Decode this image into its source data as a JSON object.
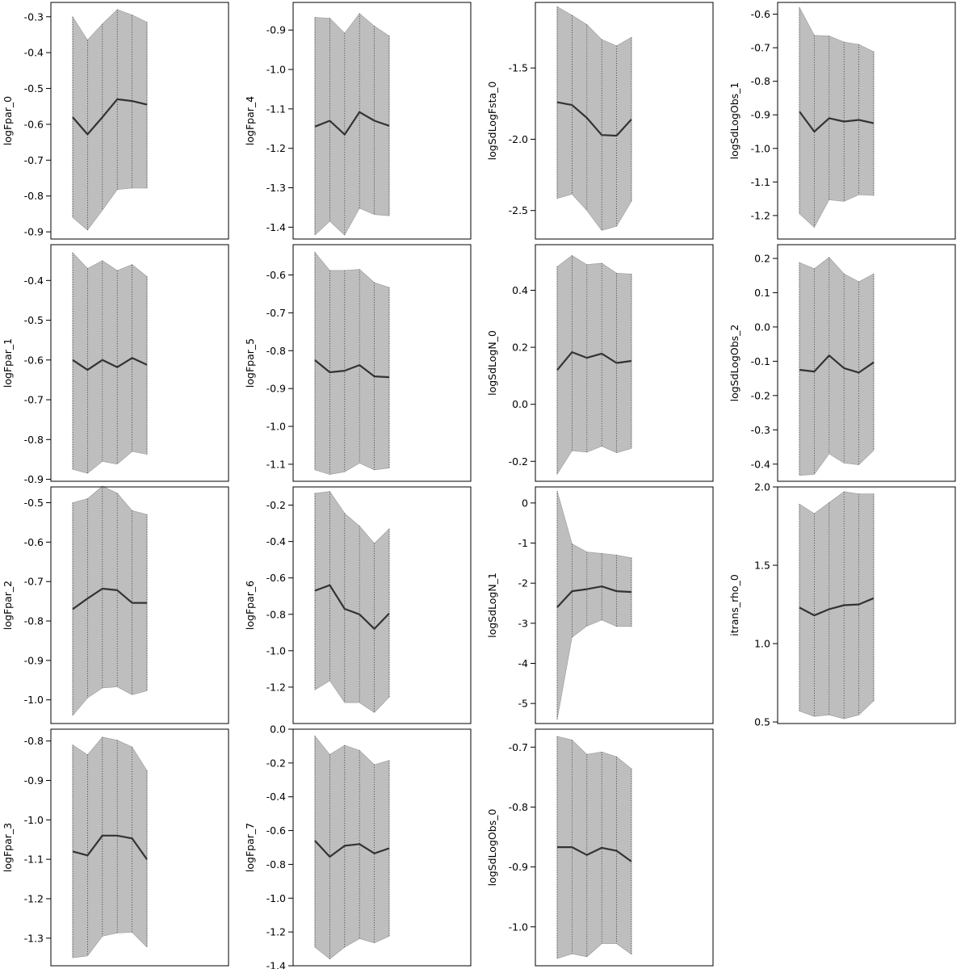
{
  "chart_data": [
    {
      "type": "area",
      "ylabel": "logFpar_0",
      "ylim": [
        -0.92,
        -0.26
      ],
      "yticks": [
        -0.9,
        -0.8,
        -0.7,
        -0.6,
        -0.5,
        -0.4,
        -0.3
      ],
      "tick_labels": [
        "-0.9",
        "-0.8",
        "-0.7",
        "-0.6",
        "-0.5",
        "-0.4",
        "-0.3"
      ],
      "x": [
        1,
        2,
        3,
        4,
        5,
        6
      ],
      "series": [
        {
          "values": [
            -0.58,
            -0.628,
            -0.58,
            -0.53,
            -0.535,
            -0.545
          ]
        }
      ],
      "upper": [
        -0.3,
        -0.365,
        -0.32,
        -0.28,
        -0.295,
        -0.315
      ],
      "lower": [
        -0.86,
        -0.895,
        -0.84,
        -0.782,
        -0.778,
        -0.778
      ]
    },
    {
      "type": "area",
      "ylabel": "logFpar_1",
      "ylim": [
        -0.905,
        -0.31
      ],
      "yticks": [
        -0.9,
        -0.8,
        -0.7,
        -0.6,
        -0.5,
        -0.4
      ],
      "tick_labels": [
        "-0.9",
        "-0.8",
        "-0.7",
        "-0.6",
        "-0.5",
        "-0.4"
      ],
      "x": [
        1,
        2,
        3,
        4,
        5,
        6
      ],
      "series": [
        {
          "values": [
            -0.6,
            -0.625,
            -0.6,
            -0.618,
            -0.595,
            -0.612
          ]
        }
      ],
      "upper": [
        -0.33,
        -0.37,
        -0.35,
        -0.375,
        -0.36,
        -0.39
      ],
      "lower": [
        -0.875,
        -0.885,
        -0.855,
        -0.862,
        -0.83,
        -0.837
      ]
    },
    {
      "type": "area",
      "ylabel": "logFpar_2",
      "ylim": [
        -1.06,
        -0.46
      ],
      "yticks": [
        -1.0,
        -0.9,
        -0.8,
        -0.7,
        -0.6,
        -0.5
      ],
      "tick_labels": [
        "-1.0",
        "-0.9",
        "-0.8",
        "-0.7",
        "-0.6",
        "-0.5"
      ],
      "x": [
        1,
        2,
        3,
        4,
        5,
        6
      ],
      "series": [
        {
          "values": [
            -0.77,
            -0.743,
            -0.718,
            -0.722,
            -0.754,
            -0.754
          ]
        }
      ],
      "upper": [
        -0.5,
        -0.49,
        -0.458,
        -0.476,
        -0.52,
        -0.53
      ],
      "lower": [
        -1.04,
        -0.995,
        -0.97,
        -0.967,
        -0.987,
        -0.977
      ]
    },
    {
      "type": "area",
      "ylabel": "logFpar_3",
      "ylim": [
        -1.37,
        -0.77
      ],
      "yticks": [
        -1.3,
        -1.2,
        -1.1,
        -1.0,
        -0.9,
        -0.8
      ],
      "tick_labels": [
        "-1.3",
        "-1.2",
        "-1.1",
        "-1.0",
        "-0.9",
        "-0.8"
      ],
      "x": [
        1,
        2,
        3,
        4,
        5,
        6
      ],
      "series": [
        {
          "values": [
            -1.08,
            -1.09,
            -1.04,
            -1.04,
            -1.047,
            -1.1
          ]
        }
      ],
      "upper": [
        -0.81,
        -0.835,
        -0.79,
        -0.798,
        -0.815,
        -0.875
      ],
      "lower": [
        -1.35,
        -1.345,
        -1.295,
        -1.287,
        -1.285,
        -1.323
      ]
    },
    {
      "type": "area",
      "ylabel": "logFpar_4",
      "ylim": [
        -1.43,
        -0.83
      ],
      "yticks": [
        -1.4,
        -1.3,
        -1.2,
        -1.1,
        -1.0,
        -0.9
      ],
      "tick_labels": [
        "-1.4",
        "-1.3",
        "-1.2",
        "-1.1",
        "-1.0",
        "-0.9"
      ],
      "x": [
        1,
        2,
        3,
        4,
        5,
        6
      ],
      "series": [
        {
          "values": [
            -1.145,
            -1.13,
            -1.165,
            -1.108,
            -1.13,
            -1.143
          ]
        }
      ],
      "upper": [
        -0.868,
        -0.87,
        -0.908,
        -0.858,
        -0.89,
        -0.915
      ],
      "lower": [
        -1.42,
        -1.385,
        -1.42,
        -1.352,
        -1.368,
        -1.371
      ]
    },
    {
      "type": "area",
      "ylabel": "logFpar_5",
      "ylim": [
        -1.145,
        -0.52
      ],
      "yticks": [
        -1.1,
        -1.0,
        -0.9,
        -0.8,
        -0.7,
        -0.6
      ],
      "tick_labels": [
        "-1.1",
        "-1.0",
        "-0.9",
        "-0.8",
        "-0.7",
        "-0.6"
      ],
      "x": [
        1,
        2,
        3,
        4,
        5,
        6
      ],
      "series": [
        {
          "values": [
            -0.825,
            -0.857,
            -0.853,
            -0.838,
            -0.868,
            -0.87
          ]
        }
      ],
      "upper": [
        -0.54,
        -0.588,
        -0.588,
        -0.585,
        -0.62,
        -0.633
      ],
      "lower": [
        -1.115,
        -1.127,
        -1.12,
        -1.097,
        -1.115,
        -1.11
      ]
    },
    {
      "type": "area",
      "ylabel": "logFpar_6",
      "ylim": [
        -1.4,
        -0.1
      ],
      "yticks": [
        -1.2,
        -1.0,
        -0.8,
        -0.6,
        -0.4,
        -0.2
      ],
      "tick_labels": [
        "-1.2",
        "-1.0",
        "-0.8",
        "-0.6",
        "-0.4",
        "-0.2"
      ],
      "x": [
        1,
        2,
        3,
        4,
        5,
        6
      ],
      "series": [
        {
          "values": [
            -0.67,
            -0.64,
            -0.77,
            -0.8,
            -0.88,
            -0.795
          ]
        }
      ],
      "upper": [
        -0.135,
        -0.125,
        -0.245,
        -0.315,
        -0.41,
        -0.33
      ],
      "lower": [
        -1.215,
        -1.165,
        -1.285,
        -1.285,
        -1.34,
        -1.255
      ]
    },
    {
      "type": "area",
      "ylabel": "logFpar_7",
      "ylim": [
        -1.4,
        0.0
      ],
      "yticks": [
        -1.4,
        -1.2,
        -1.0,
        -0.8,
        -0.6,
        -0.4,
        -0.2,
        0.0
      ],
      "tick_labels": [
        "-1.4",
        "-1.2",
        "-1.0",
        "-0.8",
        "-0.6",
        "-0.4",
        "-0.2",
        "0.0"
      ],
      "x": [
        1,
        2,
        3,
        4,
        5,
        6
      ],
      "series": [
        {
          "values": [
            -0.66,
            -0.755,
            -0.69,
            -0.68,
            -0.735,
            -0.705
          ]
        }
      ],
      "upper": [
        -0.04,
        -0.15,
        -0.095,
        -0.125,
        -0.21,
        -0.185
      ],
      "lower": [
        -1.29,
        -1.36,
        -1.29,
        -1.24,
        -1.265,
        -1.225
      ]
    },
    {
      "type": "area",
      "ylabel": "logSdLogFsta_0",
      "ylim": [
        -2.7,
        -1.04
      ],
      "yticks": [
        -2.5,
        -2.0,
        -1.5
      ],
      "tick_labels": [
        "-2.5",
        "-2.0",
        "-1.5"
      ],
      "x": [
        1,
        2,
        3,
        4,
        5,
        6
      ],
      "series": [
        {
          "values": [
            -1.74,
            -1.76,
            -1.85,
            -1.97,
            -1.975,
            -1.86
          ]
        }
      ],
      "upper": [
        -1.07,
        -1.13,
        -1.195,
        -1.3,
        -1.345,
        -1.285
      ],
      "lower": [
        -2.415,
        -2.385,
        -2.5,
        -2.64,
        -2.61,
        -2.435
      ]
    },
    {
      "type": "area",
      "ylabel": "logSdLogN_0",
      "ylim": [
        -0.27,
        0.56
      ],
      "yticks": [
        -0.2,
        0.0,
        0.2,
        0.4
      ],
      "tick_labels": [
        "-0.2",
        "0.0",
        "0.2",
        "0.4"
      ],
      "x": [
        1,
        2,
        3,
        4,
        5,
        6
      ],
      "series": [
        {
          "values": [
            0.12,
            0.183,
            0.163,
            0.178,
            0.145,
            0.152
          ]
        }
      ],
      "upper": [
        0.483,
        0.522,
        0.49,
        0.495,
        0.46,
        0.457
      ],
      "lower": [
        -0.245,
        -0.163,
        -0.168,
        -0.147,
        -0.17,
        -0.155
      ]
    },
    {
      "type": "area",
      "ylabel": "logSdLogN_1",
      "ylim": [
        -5.5,
        0.4
      ],
      "yticks": [
        -5,
        -4,
        -3,
        -2,
        -1,
        0
      ],
      "tick_labels": [
        "-5",
        "-4",
        "-3",
        "-2",
        "-1",
        "0"
      ],
      "x": [
        1,
        2,
        3,
        4,
        5,
        6
      ],
      "series": [
        {
          "values": [
            -2.6,
            -2.2,
            -2.15,
            -2.08,
            -2.2,
            -2.22
          ]
        }
      ],
      "upper": [
        0.3,
        -1.02,
        -1.22,
        -1.26,
        -1.3,
        -1.37
      ],
      "lower": [
        -5.4,
        -3.35,
        -3.07,
        -2.92,
        -3.08,
        -3.08
      ]
    },
    {
      "type": "area",
      "ylabel": "logSdLogObs_0",
      "ylim": [
        -1.065,
        -0.67
      ],
      "yticks": [
        -1.0,
        -0.9,
        -0.8,
        -0.7
      ],
      "tick_labels": [
        "-1.0",
        "-0.9",
        "-0.8",
        "-0.7"
      ],
      "x": [
        1,
        2,
        3,
        4,
        5,
        6
      ],
      "series": [
        {
          "values": [
            -0.867,
            -0.867,
            -0.88,
            -0.868,
            -0.873,
            -0.891
          ]
        }
      ],
      "upper": [
        -0.682,
        -0.688,
        -0.712,
        -0.708,
        -0.716,
        -0.736
      ],
      "lower": [
        -1.053,
        -1.045,
        -1.05,
        -1.028,
        -1.028,
        -1.046
      ]
    },
    {
      "type": "area",
      "ylabel": "logSdLogObs_1",
      "ylim": [
        -1.27,
        -0.565
      ],
      "yticks": [
        -1.2,
        -1.1,
        -1.0,
        -0.9,
        -0.8,
        -0.7,
        -0.6
      ],
      "tick_labels": [
        "-1.2",
        "-1.1",
        "-1.0",
        "-0.9",
        "-0.8",
        "-0.7",
        "-0.6"
      ],
      "x": [
        1,
        2,
        3,
        4,
        5,
        6
      ],
      "series": [
        {
          "values": [
            -0.89,
            -0.95,
            -0.91,
            -0.92,
            -0.915,
            -0.925
          ]
        }
      ],
      "upper": [
        -0.58,
        -0.663,
        -0.665,
        -0.683,
        -0.69,
        -0.712
      ],
      "lower": [
        -1.195,
        -1.235,
        -1.153,
        -1.158,
        -1.138,
        -1.14
      ]
    },
    {
      "type": "area",
      "ylabel": "logSdLogObs_2",
      "ylim": [
        -0.45,
        0.24
      ],
      "yticks": [
        -0.4,
        -0.3,
        -0.2,
        -0.1,
        0.0,
        0.1,
        0.2
      ],
      "tick_labels": [
        "-0.4",
        "-0.3",
        "-0.2",
        "-0.1",
        "0.0",
        "0.1",
        "0.2"
      ],
      "x": [
        1,
        2,
        3,
        4,
        5,
        6
      ],
      "series": [
        {
          "values": [
            -0.125,
            -0.13,
            -0.083,
            -0.12,
            -0.133,
            -0.103
          ]
        }
      ],
      "upper": [
        0.188,
        0.17,
        0.203,
        0.155,
        0.132,
        0.155
      ],
      "lower": [
        -0.433,
        -0.43,
        -0.37,
        -0.397,
        -0.402,
        -0.36
      ]
    },
    {
      "type": "area",
      "ylabel": "itrans_rho_0",
      "ylim": [
        0.49,
        2.0
      ],
      "yticks": [
        0.5,
        1.0,
        1.5,
        2.0
      ],
      "tick_labels": [
        "0.5",
        "1.0",
        "1.5",
        "2.0"
      ],
      "x": [
        1,
        2,
        3,
        4,
        5,
        6
      ],
      "series": [
        {
          "values": [
            1.23,
            1.18,
            1.22,
            1.245,
            1.25,
            1.29
          ]
        }
      ],
      "upper": [
        1.89,
        1.83,
        1.9,
        1.97,
        1.955,
        1.955
      ],
      "lower": [
        0.57,
        0.535,
        0.545,
        0.52,
        0.545,
        0.635
      ]
    }
  ]
}
